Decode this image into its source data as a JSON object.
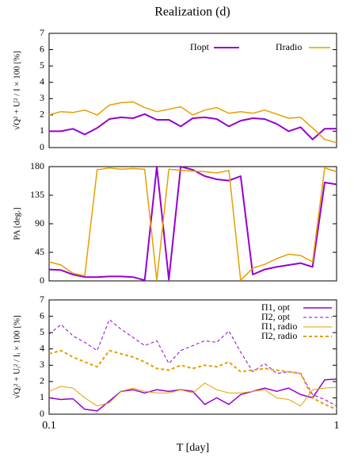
{
  "chart_data": [
    {
      "type": "line",
      "title": "Realization (d)",
      "ylabel": "√Q² + U² / I × 100 [%]",
      "xscale": "log",
      "x": [
        0.1,
        0.11,
        0.121,
        0.133,
        0.147,
        0.162,
        0.178,
        0.196,
        0.215,
        0.237,
        0.261,
        0.287,
        0.316,
        0.348,
        0.383,
        0.422,
        0.464,
        0.511,
        0.562,
        0.619,
        0.681,
        0.75,
        0.825,
        0.909,
        1.0
      ],
      "xlim": [
        0.1,
        1
      ],
      "ylim": [
        0,
        7
      ],
      "yticks": [
        0,
        1,
        2,
        3,
        4,
        5,
        6,
        7
      ],
      "legend": "top-right-row",
      "series": [
        {
          "name": "Πopt",
          "color": "#9400d3",
          "width": 2,
          "dash": false,
          "values": [
            1.0,
            1.0,
            1.15,
            0.8,
            1.2,
            1.75,
            1.85,
            1.8,
            2.05,
            1.7,
            1.7,
            1.3,
            1.8,
            1.85,
            1.75,
            1.3,
            1.65,
            1.8,
            1.75,
            1.45,
            1.0,
            1.25,
            0.5,
            1.15,
            1.15
          ]
        },
        {
          "name": "Πradio",
          "color": "#e69f00",
          "width": 1.5,
          "dash": false,
          "values": [
            2.0,
            2.2,
            2.15,
            2.3,
            2.0,
            2.6,
            2.75,
            2.8,
            2.45,
            2.2,
            2.35,
            2.5,
            2.0,
            2.3,
            2.45,
            2.1,
            2.2,
            2.1,
            2.3,
            2.05,
            1.8,
            1.85,
            1.2,
            0.5,
            0.3
          ]
        }
      ]
    },
    {
      "type": "line",
      "ylabel": "PA [deg.]",
      "xscale": "log",
      "x": [
        0.1,
        0.11,
        0.121,
        0.133,
        0.147,
        0.162,
        0.178,
        0.196,
        0.215,
        0.237,
        0.261,
        0.287,
        0.316,
        0.348,
        0.383,
        0.422,
        0.464,
        0.511,
        0.562,
        0.619,
        0.681,
        0.75,
        0.825,
        0.909,
        1.0
      ],
      "xlim": [
        0.1,
        1
      ],
      "ylim": [
        0,
        180
      ],
      "yticks": [
        0,
        45,
        90,
        135,
        180
      ],
      "series": [
        {
          "name": "Πopt",
          "color": "#9400d3",
          "width": 2,
          "dash": false,
          "values": [
            18,
            17,
            10,
            6,
            6,
            7,
            7,
            6,
            1,
            180,
            2,
            180,
            175,
            165,
            160,
            158,
            165,
            10,
            18,
            22,
            25,
            28,
            22,
            155,
            152
          ]
        },
        {
          "name": "Πradio",
          "color": "#e69f00",
          "width": 1.5,
          "dash": false,
          "values": [
            30,
            25,
            12,
            8,
            175,
            178,
            176,
            177,
            176,
            1,
            176,
            174,
            173,
            172,
            170,
            174,
            1,
            20,
            26,
            35,
            42,
            40,
            30,
            178,
            172
          ]
        }
      ]
    },
    {
      "type": "line",
      "ylabel": "√Qᵢ² + Uᵢ² / Iᵢ × 100 [%]",
      "xlabel": "T [day]",
      "xscale": "log",
      "x": [
        0.1,
        0.11,
        0.121,
        0.133,
        0.147,
        0.162,
        0.178,
        0.196,
        0.215,
        0.237,
        0.261,
        0.287,
        0.316,
        0.348,
        0.383,
        0.422,
        0.464,
        0.511,
        0.562,
        0.619,
        0.681,
        0.75,
        0.825,
        0.909,
        1.0
      ],
      "xlim": [
        0.1,
        1
      ],
      "ylim": [
        0,
        7
      ],
      "yticks": [
        0,
        1,
        2,
        3,
        4,
        5,
        6,
        7
      ],
      "xticks": [
        0.1,
        1
      ],
      "legend": "top-right-column",
      "series": [
        {
          "name": "Π1, opt",
          "color": "#9400d3",
          "width": 1.5,
          "dash": false,
          "values": [
            1.0,
            0.9,
            0.95,
            0.3,
            0.2,
            0.8,
            1.4,
            1.5,
            1.3,
            1.5,
            1.4,
            1.5,
            1.4,
            0.6,
            1.0,
            0.6,
            1.2,
            1.4,
            1.6,
            1.4,
            1.6,
            1.2,
            1.0,
            2.1,
            2.15
          ]
        },
        {
          "name": "Π2, opt",
          "color": "#9400d3",
          "width": 1,
          "dash": true,
          "values": [
            4.9,
            5.5,
            4.8,
            4.4,
            3.9,
            5.8,
            5.2,
            4.7,
            4.2,
            4.5,
            3.1,
            3.9,
            4.2,
            4.5,
            4.4,
            5.1,
            3.8,
            2.6,
            3.1,
            2.5,
            2.6,
            2.5,
            1.2,
            0.9,
            0.5
          ]
        },
        {
          "name": "Π1, radio",
          "color": "#e69f00",
          "width": 1,
          "dash": false,
          "values": [
            1.4,
            1.7,
            1.6,
            1.0,
            0.5,
            0.7,
            1.4,
            1.6,
            1.4,
            1.3,
            1.3,
            1.5,
            1.3,
            1.9,
            1.5,
            1.3,
            1.3,
            1.4,
            1.5,
            1.0,
            0.9,
            0.5,
            1.5,
            1.6,
            1.65
          ]
        },
        {
          "name": "Π2, radio",
          "color": "#e69f00",
          "width": 2,
          "dash": true,
          "values": [
            3.7,
            3.9,
            3.5,
            3.2,
            2.9,
            3.9,
            3.7,
            3.5,
            3.2,
            2.8,
            2.7,
            3.0,
            2.8,
            3.0,
            2.9,
            3.2,
            2.6,
            2.7,
            2.8,
            2.7,
            2.6,
            2.5,
            1.0,
            0.6,
            0.3
          ]
        }
      ]
    }
  ]
}
